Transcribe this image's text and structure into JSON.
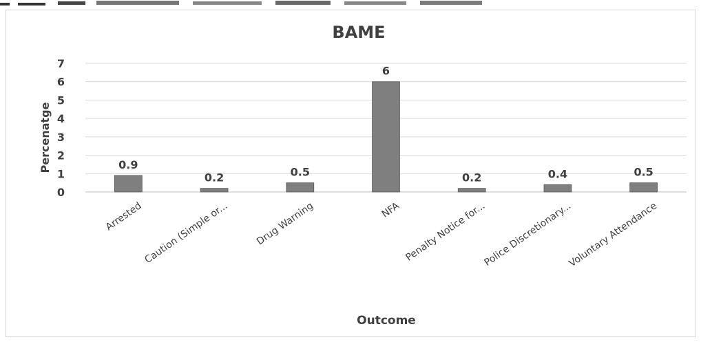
{
  "chart_data": {
    "type": "bar",
    "title": "BAME",
    "xlabel": "Outcome",
    "ylabel": "Percenatge",
    "categories": [
      "Arrested",
      "Caution (Simple or...",
      "Drug Warning",
      "NFA",
      "Penalty Notice for...",
      "Police Discretionary...",
      "Voluntary Attendance"
    ],
    "values": [
      0.9,
      0.2,
      0.5,
      6,
      0.2,
      0.4,
      0.5
    ],
    "data_labels": [
      "0.9",
      "0.2",
      "0.5",
      "6",
      "0.2",
      "0.4",
      "0.5"
    ],
    "ylim": [
      0,
      7
    ],
    "yticks": [
      "0",
      "1",
      "2",
      "3",
      "4",
      "5",
      "6",
      "7"
    ],
    "grid": true,
    "legend": "none",
    "colors": {
      "bar": "#7f7f7f",
      "bar_edge": "#5a5a5a",
      "grid": "#d9d9d9",
      "text": "#404040"
    }
  }
}
